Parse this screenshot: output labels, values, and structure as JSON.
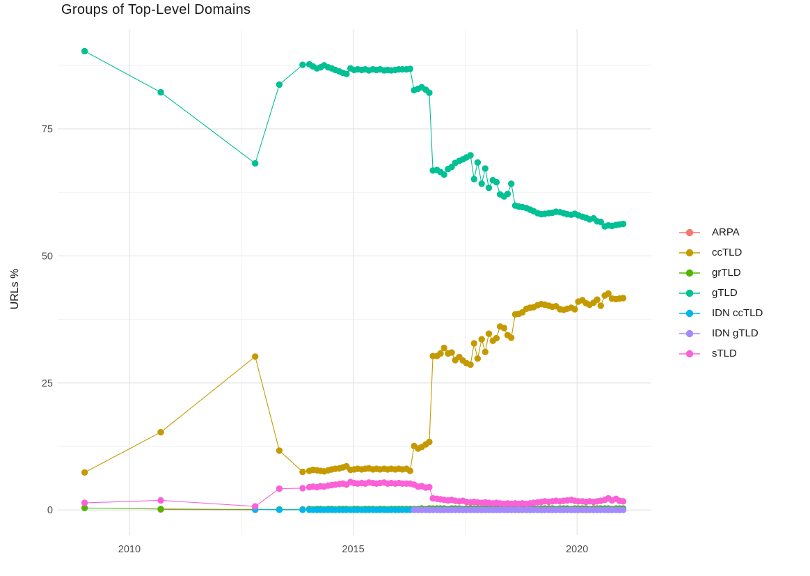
{
  "chart_data": {
    "type": "line",
    "title": "Groups of Top-Level Domains",
    "xlabel": "",
    "ylabel": "URLs %",
    "grid": true,
    "legend_position": "right",
    "background": "#ffffff",
    "grid_major_color": "#e3e3e3",
    "grid_minor_color": "#efefef",
    "tick_label_color": "#4d4d4d",
    "x_ticks": [
      2010,
      2015,
      2020
    ],
    "x_minor_ticks": [
      2012.5,
      2017.5
    ],
    "y_ticks": [
      0,
      25,
      50,
      75
    ],
    "y_minor_ticks": [
      12.5,
      37.5,
      62.5,
      87.5
    ],
    "x_range": [
      2008.4,
      2021.66
    ],
    "y_range": [
      -4.9,
      94.6
    ],
    "x": [
      2009.0,
      2010.7,
      2012.81,
      2013.35,
      2013.87,
      2014.02,
      2014.1,
      2014.19,
      2014.27,
      2014.35,
      2014.44,
      2014.52,
      2014.6,
      2014.69,
      2014.77,
      2014.85,
      2014.94,
      2015.02,
      2015.1,
      2015.19,
      2015.27,
      2015.35,
      2015.44,
      2015.52,
      2015.6,
      2015.69,
      2015.77,
      2015.85,
      2015.94,
      2016.02,
      2016.1,
      2016.19,
      2016.27,
      2016.36,
      2016.45,
      2016.53,
      2016.62,
      2016.7,
      2016.78,
      2016.87,
      2016.95,
      2017.03,
      2017.12,
      2017.2,
      2017.28,
      2017.37,
      2017.45,
      2017.53,
      2017.62,
      2017.7,
      2017.78,
      2017.87,
      2017.95,
      2018.03,
      2018.12,
      2018.2,
      2018.28,
      2018.37,
      2018.45,
      2018.53,
      2018.62,
      2018.7,
      2018.78,
      2018.87,
      2018.95,
      2019.03,
      2019.12,
      2019.2,
      2019.28,
      2019.37,
      2019.45,
      2019.53,
      2019.62,
      2019.7,
      2019.78,
      2019.87,
      2019.95,
      2020.03,
      2020.12,
      2020.2,
      2020.28,
      2020.37,
      2020.45,
      2020.53,
      2020.62,
      2020.7,
      2020.78,
      2020.87,
      2020.95,
      2021.03
    ],
    "series": [
      {
        "name": "ARPA",
        "color": "#F8766D",
        "values": [
          null,
          0.1,
          0.05,
          null,
          null,
          null,
          null,
          null,
          null,
          null,
          null,
          null,
          null,
          null,
          null,
          null,
          null,
          null,
          null,
          null,
          null,
          null,
          null,
          null,
          null,
          null,
          null,
          null,
          null,
          null,
          null,
          null,
          null,
          null,
          null,
          null,
          null,
          null,
          null,
          null,
          null,
          null,
          null,
          null,
          null,
          null,
          null,
          null,
          null,
          null,
          null,
          null,
          null,
          null,
          null,
          null,
          null,
          null,
          null,
          null,
          null,
          null,
          null,
          null,
          null,
          null,
          null,
          null,
          null,
          null,
          null,
          null,
          null,
          null,
          null,
          null,
          null,
          null,
          null,
          null,
          null,
          null,
          null,
          null,
          null,
          null,
          null,
          null,
          null,
          null
        ]
      },
      {
        "name": "ccTLD",
        "color": "#C49A00",
        "values": [
          7.4,
          15.3,
          30.2,
          11.7,
          7.5,
          7.7,
          7.9,
          7.8,
          7.7,
          7.6,
          7.8,
          8.0,
          8.1,
          8.2,
          8.4,
          8.6,
          7.9,
          8.0,
          8.1,
          8.0,
          8.1,
          8.2,
          8.0,
          8.1,
          8.0,
          8.1,
          8.0,
          8.1,
          8.0,
          8.1,
          8.0,
          8.1,
          7.7,
          12.6,
          12.1,
          12.4,
          12.9,
          13.4,
          30.3,
          30.3,
          30.8,
          31.9,
          30.8,
          31.0,
          29.5,
          30.1,
          29.4,
          28.9,
          28.6,
          32.8,
          29.8,
          33.6,
          31.1,
          34.7,
          33.3,
          33.8,
          36.1,
          35.8,
          34.4,
          33.9,
          38.5,
          38.6,
          38.9,
          39.6,
          39.8,
          39.9,
          40.3,
          40.5,
          40.4,
          40.2,
          40.0,
          40.1,
          39.5,
          39.4,
          39.6,
          39.8,
          39.5,
          41.0,
          41.3,
          40.7,
          40.4,
          40.8,
          41.4,
          40.2,
          42.2,
          42.6,
          41.6,
          41.5,
          41.6,
          41.7
        ]
      },
      {
        "name": "grTLD",
        "color": "#53B400",
        "values": [
          0.4,
          0.2,
          0.1,
          0.1,
          0.1,
          0.2,
          0.1,
          0.2,
          0.2,
          0.1,
          0.2,
          0.2,
          0.1,
          0.2,
          0.2,
          0.2,
          0.1,
          0.2,
          0.2,
          0.1,
          0.2,
          0.2,
          0.2,
          0.1,
          0.2,
          0.2,
          0.1,
          0.2,
          0.2,
          0.2,
          0.2,
          0.2,
          0.2,
          0.2,
          0.2,
          0.3,
          0.2,
          0.3,
          0.3,
          0.3,
          0.3,
          0.3,
          0.2,
          0.3,
          0.3,
          0.3,
          0.2,
          0.3,
          0.3,
          0.3,
          0.3,
          0.2,
          0.3,
          0.3,
          0.3,
          0.2,
          0.3,
          0.3,
          0.3,
          0.2,
          0.3,
          0.3,
          0.3,
          0.3,
          0.3,
          0.3,
          0.2,
          0.3,
          0.3,
          0.3,
          0.3,
          0.2,
          0.3,
          0.3,
          0.3,
          0.2,
          0.3,
          0.3,
          0.3,
          0.3,
          0.2,
          0.3,
          0.3,
          0.3,
          0.3,
          0.3,
          0.2,
          0.3,
          0.3,
          0.3
        ]
      },
      {
        "name": "gTLD",
        "color": "#00C094",
        "values": [
          90.3,
          82.2,
          68.2,
          83.7,
          87.6,
          87.7,
          87.3,
          86.9,
          87.1,
          87.5,
          87.1,
          86.9,
          86.6,
          86.3,
          86.0,
          85.8,
          86.9,
          86.6,
          86.7,
          86.6,
          86.7,
          86.5,
          86.7,
          86.6,
          86.7,
          86.5,
          86.6,
          86.5,
          86.6,
          86.7,
          86.7,
          86.7,
          86.8,
          82.6,
          82.9,
          83.2,
          82.7,
          82.1,
          66.8,
          66.9,
          66.5,
          66.0,
          67.1,
          67.5,
          68.3,
          68.7,
          69.0,
          69.4,
          69.8,
          65.1,
          68.4,
          64.2,
          67.2,
          63.4,
          64.9,
          64.5,
          62.1,
          61.7,
          62.2,
          64.2,
          59.9,
          59.7,
          59.6,
          59.4,
          59.1,
          58.8,
          58.4,
          58.2,
          58.3,
          58.4,
          58.5,
          58.7,
          58.6,
          58.4,
          58.2,
          58.1,
          58.3,
          58.0,
          57.7,
          57.5,
          57.2,
          57.4,
          56.8,
          56.7,
          55.8,
          56.0,
          55.9,
          56.1,
          56.2,
          56.3
        ]
      },
      {
        "name": "IDN ccTLD",
        "color": "#00B6EB",
        "values": [
          null,
          null,
          0.1,
          0.05,
          0.05,
          0.05,
          0.05,
          0.05,
          0.05,
          0.05,
          0.05,
          0.05,
          0.05,
          0.05,
          0.05,
          0.05,
          0.05,
          0.05,
          0.05,
          0.05,
          0.05,
          0.05,
          0.05,
          0.05,
          0.05,
          0.05,
          0.05,
          0.05,
          0.05,
          0.05,
          0.05,
          0.05,
          0.05,
          0.05,
          0.05,
          0.05,
          0.05,
          0.05,
          0.05,
          0.05,
          0.05,
          0.05,
          0.05,
          0.05,
          0.05,
          0.05,
          0.05,
          0.05,
          0.05,
          0.05,
          0.05,
          0.05,
          0.05,
          0.05,
          0.05,
          0.05,
          0.05,
          0.05,
          0.05,
          0.05,
          0.05,
          0.05,
          0.05,
          0.05,
          0.05,
          0.05,
          0.05,
          0.05,
          0.05,
          0.05,
          0.05,
          0.05,
          0.05,
          0.05,
          0.05,
          0.05,
          0.05,
          0.05,
          0.05,
          0.05,
          0.05,
          0.05,
          0.05,
          0.05,
          0.05,
          0.05,
          0.05,
          0.05,
          0.05,
          0.05
        ]
      },
      {
        "name": "IDN gTLD",
        "color": "#A58AFF",
        "values": [
          null,
          null,
          null,
          null,
          null,
          null,
          null,
          null,
          null,
          null,
          null,
          null,
          null,
          null,
          null,
          null,
          null,
          null,
          null,
          null,
          null,
          null,
          null,
          null,
          null,
          null,
          null,
          null,
          null,
          null,
          null,
          null,
          null,
          0.0,
          0.0,
          0.0,
          0.0,
          0.0,
          0.0,
          0.0,
          0.0,
          0.0,
          0.0,
          0.0,
          0.0,
          0.0,
          0.0,
          0.0,
          0.0,
          0.0,
          0.0,
          0.0,
          0.0,
          0.0,
          0.0,
          0.0,
          0.0,
          0.0,
          0.0,
          0.0,
          0.0,
          0.0,
          0.0,
          0.0,
          0.0,
          0.0,
          0.0,
          0.0,
          0.0,
          0.0,
          0.0,
          0.0,
          0.0,
          0.0,
          0.0,
          0.0,
          0.0,
          0.0,
          0.0,
          0.0,
          0.0,
          0.0,
          0.0,
          0.0,
          0.0,
          0.0,
          0.0,
          0.0,
          0.0,
          0.0
        ]
      },
      {
        "name": "sTLD",
        "color": "#FB61D7",
        "values": [
          1.4,
          1.9,
          0.7,
          4.2,
          4.3,
          4.5,
          4.6,
          4.5,
          4.7,
          4.6,
          4.8,
          4.9,
          5.0,
          5.1,
          5.2,
          5.0,
          5.5,
          5.3,
          5.2,
          5.3,
          5.2,
          5.4,
          5.3,
          5.2,
          5.3,
          5.4,
          5.2,
          5.3,
          5.2,
          5.3,
          5.2,
          5.2,
          5.2,
          5.0,
          4.6,
          4.7,
          4.4,
          4.5,
          2.3,
          2.2,
          2.1,
          2.0,
          1.9,
          2.0,
          1.8,
          1.7,
          1.8,
          1.6,
          1.5,
          1.6,
          1.5,
          1.4,
          1.5,
          1.4,
          1.3,
          1.4,
          1.3,
          1.2,
          1.3,
          1.2,
          1.3,
          1.2,
          1.3,
          1.2,
          1.3,
          1.4,
          1.5,
          1.6,
          1.7,
          1.6,
          1.7,
          1.8,
          1.7,
          1.8,
          1.9,
          2.0,
          1.8,
          1.7,
          1.7,
          1.6,
          1.7,
          1.6,
          1.7,
          1.8,
          2.0,
          2.3,
          1.9,
          2.2,
          1.8,
          1.7
        ]
      }
    ]
  }
}
